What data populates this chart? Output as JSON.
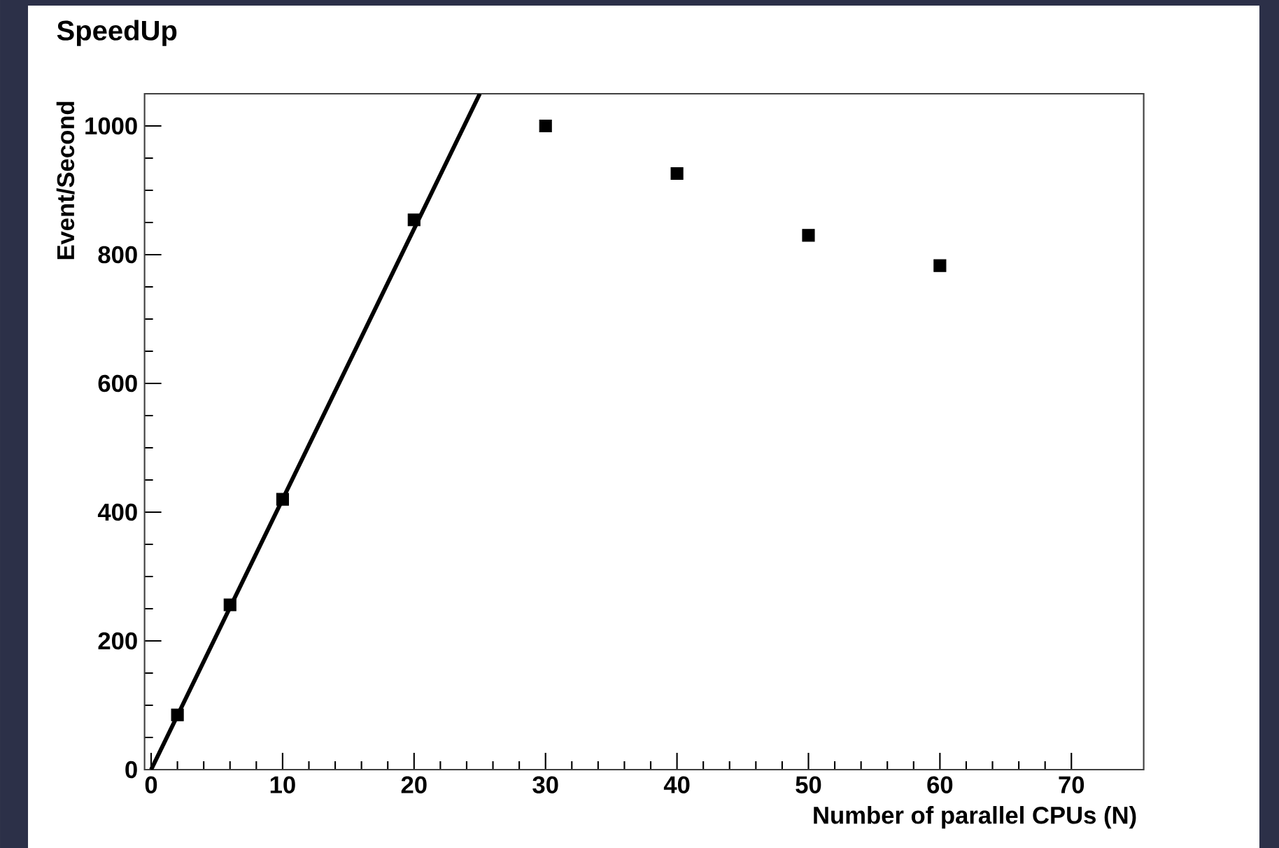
{
  "chart_data": {
    "type": "scatter",
    "title": "SpeedUp",
    "xlabel": "Number of parallel CPUs (N)",
    "ylabel": "Event/Second",
    "xlim": [
      -0.5,
      75.5
    ],
    "ylim": [
      0,
      1050
    ],
    "xticks": [
      0,
      10,
      20,
      30,
      40,
      50,
      60,
      70
    ],
    "yticks": [
      0,
      200,
      400,
      600,
      800,
      1000
    ],
    "grid": false,
    "marker": "square",
    "series": [
      {
        "color": "#000000",
        "x": [
          2,
          6,
          10,
          20,
          30,
          40,
          50,
          60
        ],
        "values": [
          85,
          256,
          420,
          854,
          1000,
          926,
          830,
          783
        ]
      },
      {
        "type": "line",
        "marker": "none",
        "color": "#000000",
        "x": [
          0,
          25
        ],
        "values": [
          0,
          1050
        ]
      }
    ]
  }
}
